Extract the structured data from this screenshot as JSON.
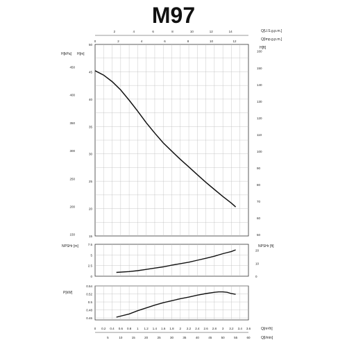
{
  "title": "M97",
  "chart_data": [
    {
      "name": "head",
      "type": "line",
      "top_axis_1": {
        "label": "Q[U.S.g.p.m.]",
        "ticks": [
          "2",
          "4",
          "6",
          "8",
          "10",
          "12",
          "14"
        ]
      },
      "top_axis_2": {
        "label": "Q[Imp.g.p.m.]",
        "ticks": [
          "0",
          "2",
          "4",
          "6",
          "8",
          "10",
          "12"
        ]
      },
      "ylabel_left_outer": "H[kPa]",
      "ylabel_left_inner": "H[m]",
      "ylabel_right": "H[ft]",
      "yticks_kpa": [
        "150",
        "200",
        "250",
        "300",
        "350",
        "400",
        "450"
      ],
      "yticks_m": [
        "15",
        "20",
        "25",
        "30",
        "35",
        "40",
        "45",
        "50"
      ],
      "yticks_ft": [
        "50",
        "60",
        "70",
        "80",
        "90",
        "100",
        "110",
        "120",
        "130",
        "140",
        "150",
        "160"
      ],
      "ylim_m": [
        15,
        50
      ],
      "xlim_m3h": [
        0,
        3.6
      ],
      "x": [
        0,
        0.2,
        0.4,
        0.6,
        0.8,
        1.0,
        1.2,
        1.4,
        1.6,
        1.8,
        2.0,
        2.2,
        2.4,
        2.6,
        2.8,
        3.0,
        3.2,
        3.3
      ],
      "y": [
        45.2,
        44.4,
        43.2,
        41.7,
        39.8,
        37.8,
        35.7,
        33.8,
        32.0,
        30.5,
        29.0,
        27.6,
        26.2,
        24.8,
        23.5,
        22.2,
        21.0,
        20.3
      ]
    },
    {
      "name": "npsh",
      "type": "line",
      "ylabel_left": "NPSHr [m]",
      "ylabel_right": "NPSHr [ft]",
      "yticks_m": [
        "0",
        "2.5",
        "5",
        "7.5"
      ],
      "yticks_ft": [
        "0",
        "10",
        "20"
      ],
      "ylim_m": [
        0,
        7.5
      ],
      "x": [
        0.5,
        0.8,
        1.0,
        1.2,
        1.4,
        1.6,
        1.8,
        2.0,
        2.2,
        2.4,
        2.6,
        2.8,
        3.0,
        3.2,
        3.3
      ],
      "y": [
        0.9,
        1.1,
        1.3,
        1.6,
        1.9,
        2.2,
        2.6,
        2.95,
        3.3,
        3.75,
        4.2,
        4.7,
        5.3,
        5.8,
        6.2
      ]
    },
    {
      "name": "power",
      "type": "line",
      "ylabel_left": "P[kW]",
      "yticks": [
        "0.46",
        "0.48",
        "0.5",
        "0.52",
        "0.54"
      ],
      "ylim": [
        0.455,
        0.54
      ],
      "x": [
        0.5,
        0.8,
        1.0,
        1.2,
        1.4,
        1.6,
        1.8,
        2.0,
        2.2,
        2.4,
        2.6,
        2.8,
        2.9,
        3.0,
        3.1,
        3.2,
        3.3
      ],
      "y": [
        0.462,
        0.47,
        0.478,
        0.485,
        0.492,
        0.498,
        0.503,
        0.508,
        0.512,
        0.517,
        0.521,
        0.524,
        0.525,
        0.525,
        0.524,
        0.521,
        0.519
      ]
    },
    {
      "name": "flow-axes",
      "bottom_axis_1": {
        "label": "Q[m³/h]",
        "ticks": [
          "0",
          "0.2",
          "0.4",
          "0.6",
          "0.8",
          "1",
          "1.2",
          "1.4",
          "1.6",
          "1.8",
          "2",
          "2.2",
          "2.4",
          "2.6",
          "2.8",
          "3",
          "3.2",
          "3.4",
          "3.6"
        ]
      },
      "bottom_axis_2": {
        "label": "Q[l/min]",
        "ticks": [
          "5",
          "10",
          "15",
          "20",
          "25",
          "30",
          "35",
          "40",
          "45",
          "50",
          "55",
          "60"
        ]
      }
    }
  ]
}
